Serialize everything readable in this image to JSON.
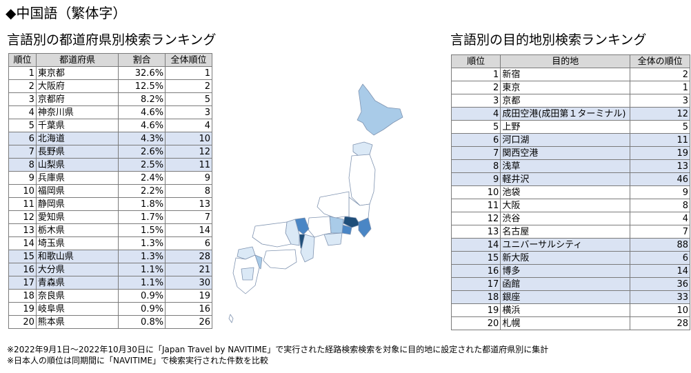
{
  "title": "◆中国語（繁体字）",
  "prefecture_ranking": {
    "heading": "言語別の都道府県別検索ランキング",
    "columns": [
      "順位",
      "都道府県",
      "割合",
      "全体順位"
    ],
    "rows": [
      {
        "rank": "1",
        "name": "東京都",
        "share": "32.6%",
        "overall": "1"
      },
      {
        "rank": "2",
        "name": "大阪府",
        "share": "12.5%",
        "overall": "2"
      },
      {
        "rank": "3",
        "name": "京都府",
        "share": "8.2%",
        "overall": "5"
      },
      {
        "rank": "4",
        "name": "神奈川県",
        "share": "4.6%",
        "overall": "3"
      },
      {
        "rank": "5",
        "name": "千葉県",
        "share": "4.6%",
        "overall": "4"
      },
      {
        "rank": "6",
        "name": "北海道",
        "share": "4.3%",
        "overall": "10"
      },
      {
        "rank": "7",
        "name": "長野県",
        "share": "2.6%",
        "overall": "12"
      },
      {
        "rank": "8",
        "name": "山梨県",
        "share": "2.5%",
        "overall": "11"
      },
      {
        "rank": "9",
        "name": "兵庫県",
        "share": "2.4%",
        "overall": "9"
      },
      {
        "rank": "10",
        "name": "福岡県",
        "share": "2.2%",
        "overall": "8"
      },
      {
        "rank": "11",
        "name": "静岡県",
        "share": "1.8%",
        "overall": "13"
      },
      {
        "rank": "12",
        "name": "愛知県",
        "share": "1.7%",
        "overall": "7"
      },
      {
        "rank": "13",
        "name": "栃木県",
        "share": "1.5%",
        "overall": "14"
      },
      {
        "rank": "14",
        "name": "埼玉県",
        "share": "1.3%",
        "overall": "6"
      },
      {
        "rank": "15",
        "name": "和歌山県",
        "share": "1.3%",
        "overall": "28"
      },
      {
        "rank": "16",
        "name": "大分県",
        "share": "1.1%",
        "overall": "21"
      },
      {
        "rank": "17",
        "name": "青森県",
        "share": "1.1%",
        "overall": "30"
      },
      {
        "rank": "18",
        "name": "奈良県",
        "share": "0.9%",
        "overall": "19"
      },
      {
        "rank": "19",
        "name": "岐阜県",
        "share": "0.9%",
        "overall": "16"
      },
      {
        "rank": "20",
        "name": "熊本県",
        "share": "0.8%",
        "overall": "26"
      }
    ]
  },
  "destination_ranking": {
    "heading": "言語別の目的地別検索ランキング",
    "columns": [
      "順位",
      "目的地",
      "全体の順位"
    ],
    "rows": [
      {
        "rank": "1",
        "name": "新宿",
        "overall": "2"
      },
      {
        "rank": "2",
        "name": "東京",
        "overall": "1"
      },
      {
        "rank": "3",
        "name": "京都",
        "overall": "3"
      },
      {
        "rank": "4",
        "name": "成田空港(成田第１ターミナル)",
        "overall": "12"
      },
      {
        "rank": "5",
        "name": "上野",
        "overall": "5"
      },
      {
        "rank": "6",
        "name": "河口湖",
        "overall": "11"
      },
      {
        "rank": "7",
        "name": "関西空港",
        "overall": "19"
      },
      {
        "rank": "8",
        "name": "浅草",
        "overall": "13"
      },
      {
        "rank": "9",
        "name": "軽井沢",
        "overall": "46"
      },
      {
        "rank": "10",
        "name": "池袋",
        "overall": "9"
      },
      {
        "rank": "11",
        "name": "大阪",
        "overall": "8"
      },
      {
        "rank": "12",
        "name": "渋谷",
        "overall": "4"
      },
      {
        "rank": "13",
        "name": "名古屋",
        "overall": "7"
      },
      {
        "rank": "14",
        "name": "ユニバーサルシティ",
        "overall": "88"
      },
      {
        "rank": "15",
        "name": "新大阪",
        "overall": "6"
      },
      {
        "rank": "16",
        "name": "博多",
        "overall": "14"
      },
      {
        "rank": "17",
        "name": "函館",
        "overall": "36"
      },
      {
        "rank": "18",
        "name": "銀座",
        "overall": "33"
      },
      {
        "rank": "19",
        "name": "横浜",
        "overall": "10"
      },
      {
        "rank": "20",
        "name": "札幌",
        "overall": "28"
      }
    ]
  },
  "map_colors": {
    "dark": "#1f4e79",
    "mid": "#4a86c5",
    "light": "#a9cbe8",
    "pale": "#dbe9f6",
    "base": "#ffffff",
    "border": "#7f93b0"
  },
  "footnotes": [
    "※2022年9月1日～2022年10月30日に「Japan Travel by NAVITIME」で実行された経路検索検索を対象に目的地に設定された都道府県別に集計",
    "※日本人の順位は同期間に「NAVITIME」で検索実行された件数を比較"
  ]
}
